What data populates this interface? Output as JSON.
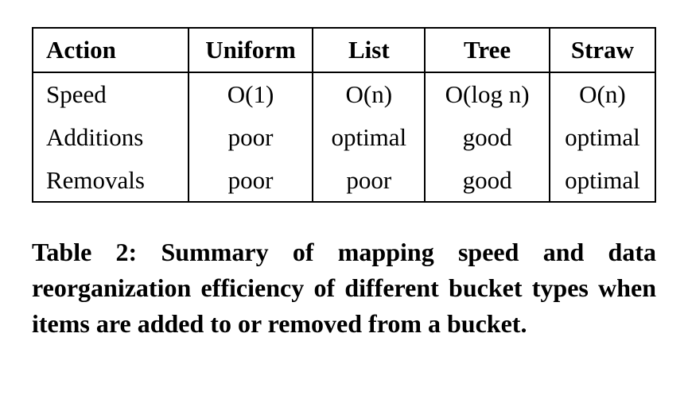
{
  "table": {
    "type": "table",
    "border_color": "#000000",
    "border_width": 2,
    "background_color": "#ffffff",
    "font_family": "Times New Roman",
    "header_fontsize": 31,
    "cell_fontsize": 31,
    "columns": [
      {
        "key": "action",
        "label": "Action",
        "align": "left",
        "width_pct": 25
      },
      {
        "key": "uniform",
        "label": "Uniform",
        "align": "center",
        "width_pct": 20
      },
      {
        "key": "list",
        "label": "List",
        "align": "center",
        "width_pct": 18
      },
      {
        "key": "tree",
        "label": "Tree",
        "align": "center",
        "width_pct": 20
      },
      {
        "key": "straw",
        "label": "Straw",
        "align": "center",
        "width_pct": 17
      }
    ],
    "rows": [
      {
        "action": "Speed",
        "uniform": "O(1)",
        "list": "O(n)",
        "tree": "O(log n)",
        "straw": "O(n)"
      },
      {
        "action": "Additions",
        "uniform": "poor",
        "list": "optimal",
        "tree": "good",
        "straw": "optimal"
      },
      {
        "action": "Removals",
        "uniform": "poor",
        "list": "poor",
        "tree": "good",
        "straw": "optimal"
      }
    ]
  },
  "caption": {
    "text": "Table 2: Summary of mapping speed and data reorganization efficiency of different bucket types when items are added to or removed from a bucket.",
    "fontsize": 32,
    "fontweight": "bold",
    "color": "#000000"
  }
}
